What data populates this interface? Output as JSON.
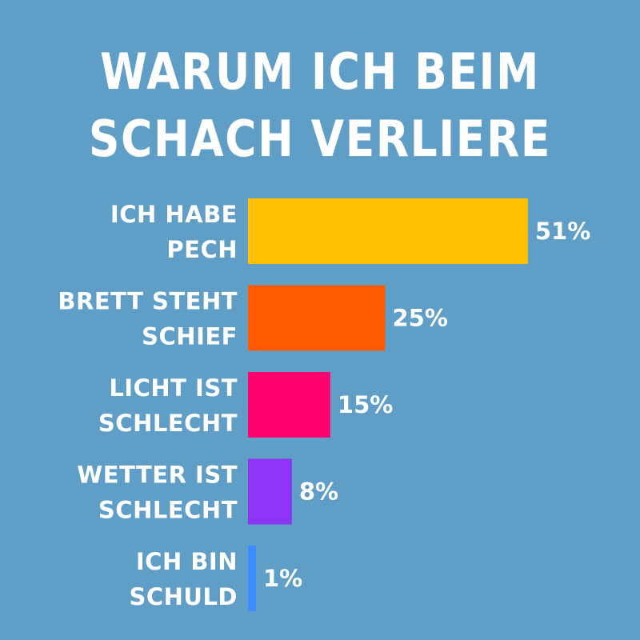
{
  "chart_data": {
    "type": "bar",
    "orientation": "horizontal",
    "title": "WARUM ICH BEIM SCHACH VERLIERE",
    "title_lines": [
      "WARUM ICH BEIM",
      "SCHACH VERLIERE"
    ],
    "categories": [
      [
        "ICH HABE",
        "PECH"
      ],
      [
        "BRETT STEHT",
        "SCHIEF"
      ],
      [
        "LICHT IST",
        "SCHLECHT"
      ],
      [
        "WETTER IST",
        "SCHLECHT"
      ],
      [
        "ICH BIN",
        "SCHULD"
      ]
    ],
    "values": [
      51,
      25,
      15,
      8,
      1
    ],
    "value_labels": [
      "51%",
      "25%",
      "15%",
      "8%",
      "1%"
    ],
    "colors": [
      "#ffc000",
      "#ff5a00",
      "#ff006e",
      "#8d35f5",
      "#3a8cff"
    ],
    "background": "#5f9ec7",
    "xlim": [
      0,
      100
    ],
    "grid": false,
    "legend": "none"
  }
}
